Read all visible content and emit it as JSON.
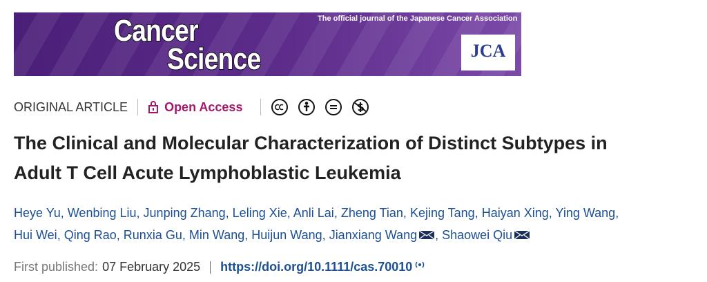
{
  "banner": {
    "journal_line1": "Cancer",
    "journal_line2": "Science",
    "tagline": "The official journal of the Japanese Cancer Association",
    "logo": "JCA"
  },
  "article": {
    "type": "ORIGINAL ARTICLE",
    "access": "Open Access",
    "title": "The Clinical and Molecular Characterization of Distinct Subtypes in Adult T Cell Acute Lymphoblastic Leukemia",
    "author_separator": ",",
    "authors": [
      {
        "name": "Heye Yu"
      },
      {
        "name": "Wenbing Liu"
      },
      {
        "name": "Junping Zhang"
      },
      {
        "name": "Leling Xie"
      },
      {
        "name": "Anli Lai"
      },
      {
        "name": "Zheng Tian"
      },
      {
        "name": "Kejing Tang"
      },
      {
        "name": "Haiyan Xing"
      },
      {
        "name": "Ying Wang"
      },
      {
        "name": "Hui Wei"
      },
      {
        "name": "Qing Rao"
      },
      {
        "name": "Runxia Gu"
      },
      {
        "name": "Min Wang"
      },
      {
        "name": "Huijun Wang"
      },
      {
        "name": "Jianxiang Wang",
        "corresponding": true
      },
      {
        "name": "Shaowei Qiu",
        "corresponding": true
      }
    ],
    "published_label": "First published:",
    "published_date": "07 February 2025",
    "doi": "https://doi.org/10.1111/cas.70010"
  }
}
